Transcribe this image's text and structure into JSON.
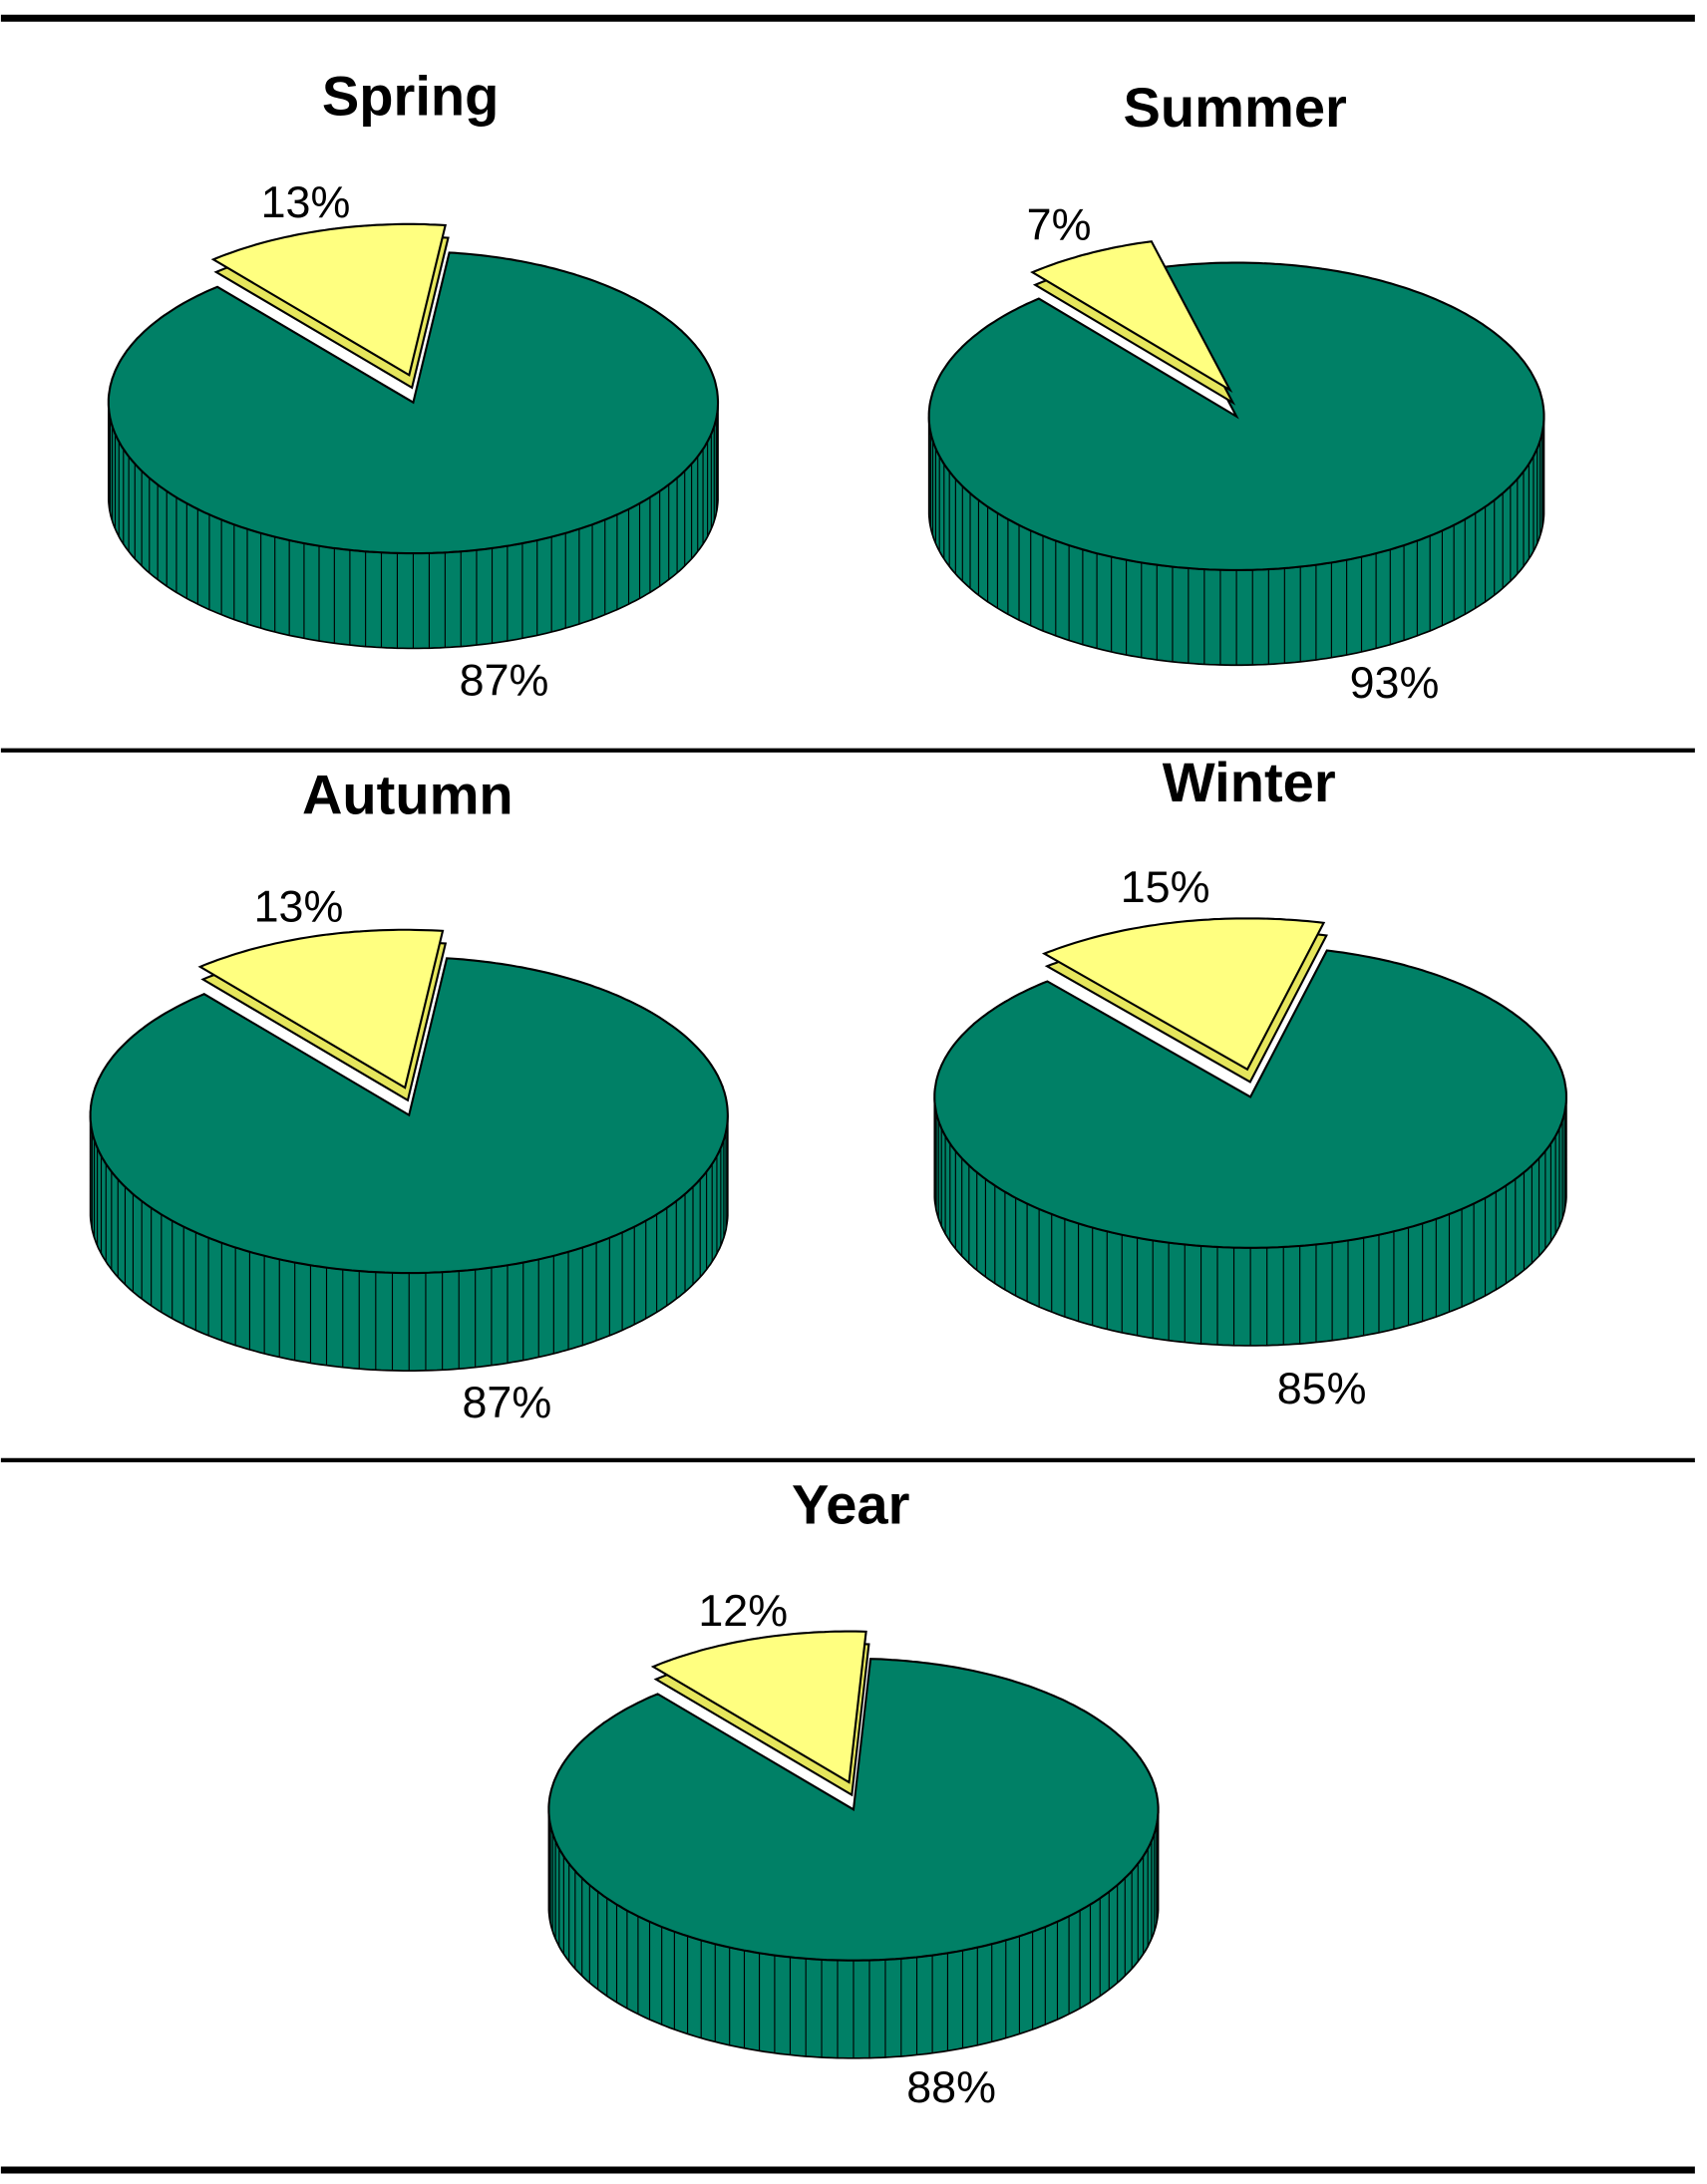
{
  "chart_data": [
    {
      "type": "pie",
      "title": "Spring",
      "values": [
        13,
        87
      ],
      "value_labels": [
        "13%",
        "87%"
      ],
      "colors": [
        "#ffff80",
        "#008066"
      ]
    },
    {
      "type": "pie",
      "title": "Summer",
      "values": [
        7,
        93
      ],
      "value_labels": [
        "7%",
        "93%"
      ],
      "colors": [
        "#ffff80",
        "#008066"
      ]
    },
    {
      "type": "pie",
      "title": "Autumn",
      "values": [
        13,
        87
      ],
      "value_labels": [
        "13%",
        "87%"
      ],
      "colors": [
        "#ffff80",
        "#008066"
      ]
    },
    {
      "type": "pie",
      "title": "Winter",
      "values": [
        15,
        85
      ],
      "value_labels": [
        "15%",
        "85%"
      ],
      "colors": [
        "#ffff80",
        "#008066"
      ]
    },
    {
      "type": "pie",
      "title": "Year",
      "values": [
        12,
        88
      ],
      "value_labels": [
        "12%",
        "88%"
      ],
      "colors": [
        "#ffff80",
        "#008066"
      ]
    }
  ]
}
